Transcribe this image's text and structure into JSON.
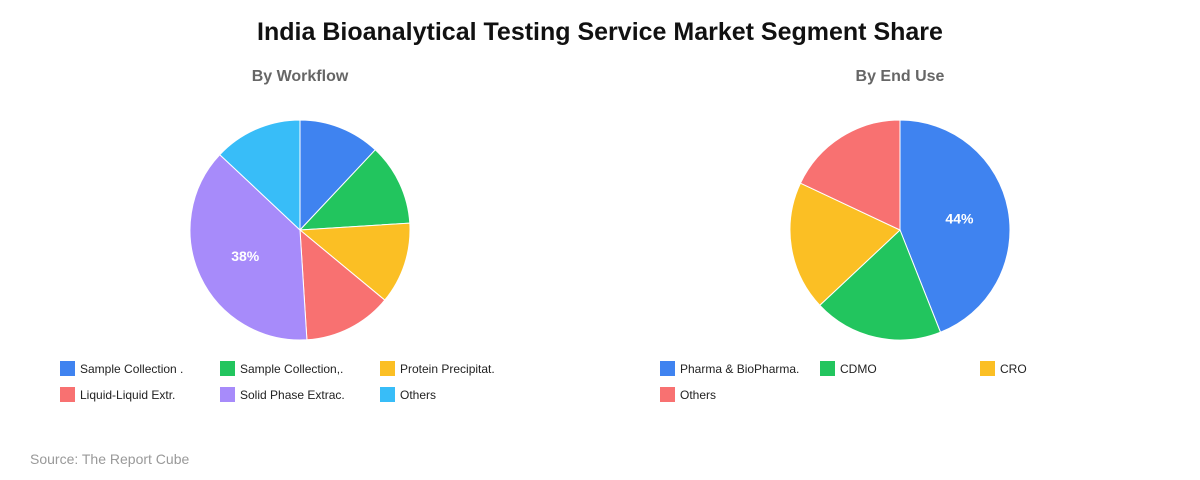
{
  "title": "India Bioanalytical Testing Service Market Segment Share",
  "source": "Source: The Report Cube",
  "chart_data": [
    {
      "type": "pie",
      "title": "By Workflow",
      "categories": [
        "Sample Collection .",
        "Sample Collection,.",
        "Protein Precipitat.",
        "Liquid-Liquid Extr.",
        "Solid Phase Extrac.",
        "Others"
      ],
      "values": [
        12,
        12,
        12,
        13,
        38,
        13
      ],
      "colors": [
        "#3f83f0",
        "#22c55e",
        "#fbbf24",
        "#f87171",
        "#a78bfa",
        "#38bdf8"
      ],
      "data_labels": [
        "",
        "",
        "",
        "",
        "38%",
        ""
      ],
      "legend": "bottom"
    },
    {
      "type": "pie",
      "title": "By End Use",
      "categories": [
        "Pharma & BioPharma.",
        "CDMO",
        "CRO",
        "Others"
      ],
      "values": [
        44,
        19,
        19,
        18
      ],
      "colors": [
        "#3f83f0",
        "#22c55e",
        "#fbbf24",
        "#f87171"
      ],
      "data_labels": [
        "44%",
        "",
        "",
        ""
      ],
      "legend": "bottom"
    }
  ]
}
